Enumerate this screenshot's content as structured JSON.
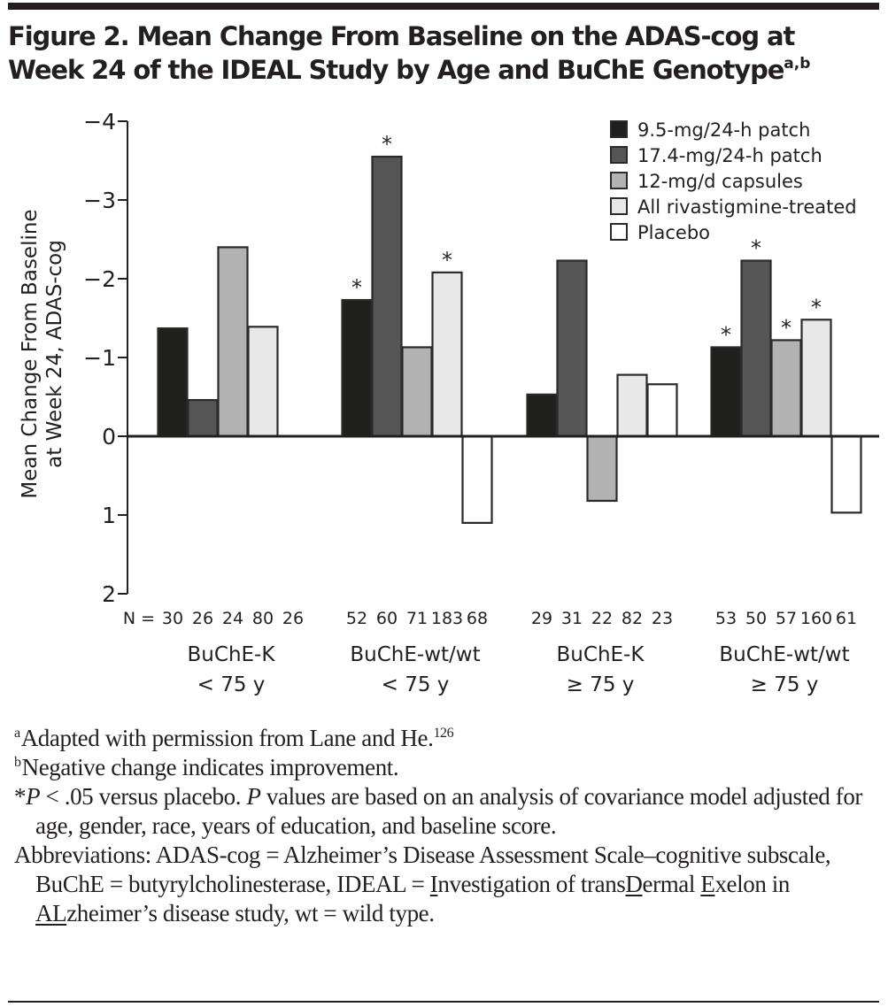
{
  "header": {
    "title_line1": "Figure 2. Mean Change From Baseline on the ADAS-cog at",
    "title_line2": "Week 24 of the IDEAL Study by Age and BuChE Genotype",
    "title_sup": "a,b"
  },
  "chart_data": {
    "type": "bar",
    "title": "Mean Change From Baseline on the ADAS-cog at Week 24 of the IDEAL Study by Age and BuChE Genotype",
    "ylabel_line1": "Mean Change From Baseline",
    "ylabel_line2": "at Week 24, ADAS-cog",
    "ylim": [
      2,
      -4
    ],
    "y_inverted": true,
    "yticks": [
      -4,
      -3,
      -2,
      -1,
      0,
      1,
      2
    ],
    "ytick_labels": [
      "−4",
      "−3",
      "−2",
      "−1",
      "0",
      "1",
      "2"
    ],
    "grid": false,
    "legend_position": "top-right",
    "n_prefix": "N =",
    "categories": [
      {
        "line1": "BuChE-K",
        "line2": "< 75 y",
        "n": [
          "30",
          "26",
          "24",
          "80",
          "26"
        ]
      },
      {
        "line1": "BuChE-wt/wt",
        "line2": "< 75 y",
        "n": [
          "52",
          "60",
          "71",
          "183",
          "68"
        ]
      },
      {
        "line1": "BuChE-K",
        "line2": "≥ 75 y",
        "n": [
          "29",
          "31",
          "22",
          "82",
          "23"
        ]
      },
      {
        "line1": "BuChE-wt/wt",
        "line2": "≥ 75 y",
        "n": [
          "53",
          "50",
          "57",
          "160",
          "61"
        ]
      }
    ],
    "series": [
      {
        "name": "9.5-mg/24-h patch",
        "color": "#1f1f1d",
        "values": [
          -1.37,
          -1.73,
          -0.53,
          -1.13
        ],
        "significant": [
          false,
          true,
          false,
          true
        ]
      },
      {
        "name": "17.4-mg/24-h patch",
        "color": "#555555",
        "values": [
          -0.46,
          -3.55,
          -2.23,
          -2.23
        ],
        "significant": [
          false,
          true,
          false,
          true
        ]
      },
      {
        "name": "12-mg/d capsules",
        "color": "#b2b2b2",
        "values": [
          -2.4,
          -1.13,
          0.82,
          -1.22
        ],
        "significant": [
          false,
          false,
          false,
          true
        ]
      },
      {
        "name": "All rivastigmine-treated",
        "color": "#e8e8e8",
        "values": [
          -1.39,
          -2.08,
          -0.78,
          -1.48
        ],
        "significant": [
          false,
          true,
          false,
          true
        ]
      },
      {
        "name": "Placebo",
        "color": "#ffffff",
        "values": [
          0,
          1.1,
          -0.66,
          0.97
        ],
        "significant": [
          false,
          false,
          false,
          false
        ]
      }
    ],
    "significance_marker": "*"
  },
  "notes": {
    "a_sup": "a",
    "a_text": "Adapted with permission from Lane and He.",
    "a_ref": "126",
    "b_sup": "b",
    "b_text": "Negative change indicates improvement.",
    "star": "*",
    "p_italic1": "P",
    "p_text1": " < .05 versus placebo. ",
    "p_italic2": "P",
    "p_text2": " values are based on an analysis of covariance model adjusted for age, gender, race, years of education, and baseline score.",
    "abbrev_1": "Abbreviations: ADAS-cog = Alzheimer’s Disease Assessment Scale–cognitive subscale, BuChE = butyrylcholinesterase, IDEAL = ",
    "abbrev_I": "I",
    "abbrev_2": "nvestigation of trans",
    "abbrev_D": "D",
    "abbrev_3": "ermal ",
    "abbrev_E": "E",
    "abbrev_4": "xelon in ",
    "abbrev_AL": "AL",
    "abbrev_5": "zheimer’s disease study, wt = wild type."
  }
}
